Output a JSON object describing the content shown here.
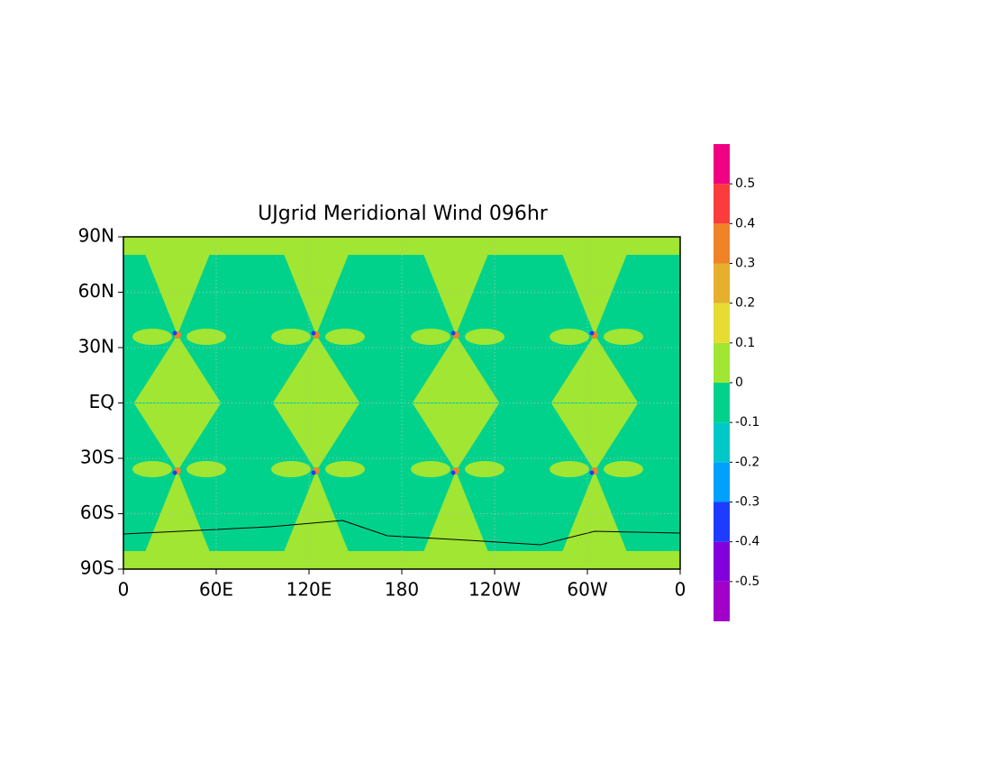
{
  "map": {
    "title": "UJgrid Meridional Wind 096hr",
    "xlim": [
      0,
      360
    ],
    "ylim": [
      -90,
      90
    ],
    "xticks": [
      0,
      {
        "value": 60,
        "label": "60E"
      },
      {
        "value": 120,
        "label": "120E"
      },
      180,
      {
        "value": 240,
        "label": "120W"
      },
      {
        "value": 300,
        "label": "60W"
      },
      {
        "value": 360,
        "label": "0"
      }
    ],
    "yticks": [
      {
        "value": -90,
        "label": "90S"
      },
      {
        "value": -60,
        "label": "60S"
      },
      {
        "value": -30,
        "label": "30S"
      },
      {
        "value": 0,
        "label": "EQ"
      },
      {
        "value": 30,
        "label": "30N"
      },
      {
        "value": 60,
        "label": "60N"
      },
      {
        "value": 90,
        "label": "90N"
      }
    ],
    "grid": true,
    "colorbar": {
      "clim": [
        -0.6,
        0.6
      ],
      "levels": [
        -0.5,
        -0.4,
        -0.3,
        -0.2,
        -0.1,
        0,
        0.1,
        0.2,
        0.3,
        0.4,
        0.5
      ],
      "colors": [
        "#a000c8",
        "#8200dc",
        "#1e3cff",
        "#00a0ff",
        "#00c8c8",
        "#00d28c",
        "#a0e632",
        "#e6dc32",
        "#e6af2d",
        "#f08228",
        "#fa3c3c",
        "#f00082"
      ]
    }
  }
}
